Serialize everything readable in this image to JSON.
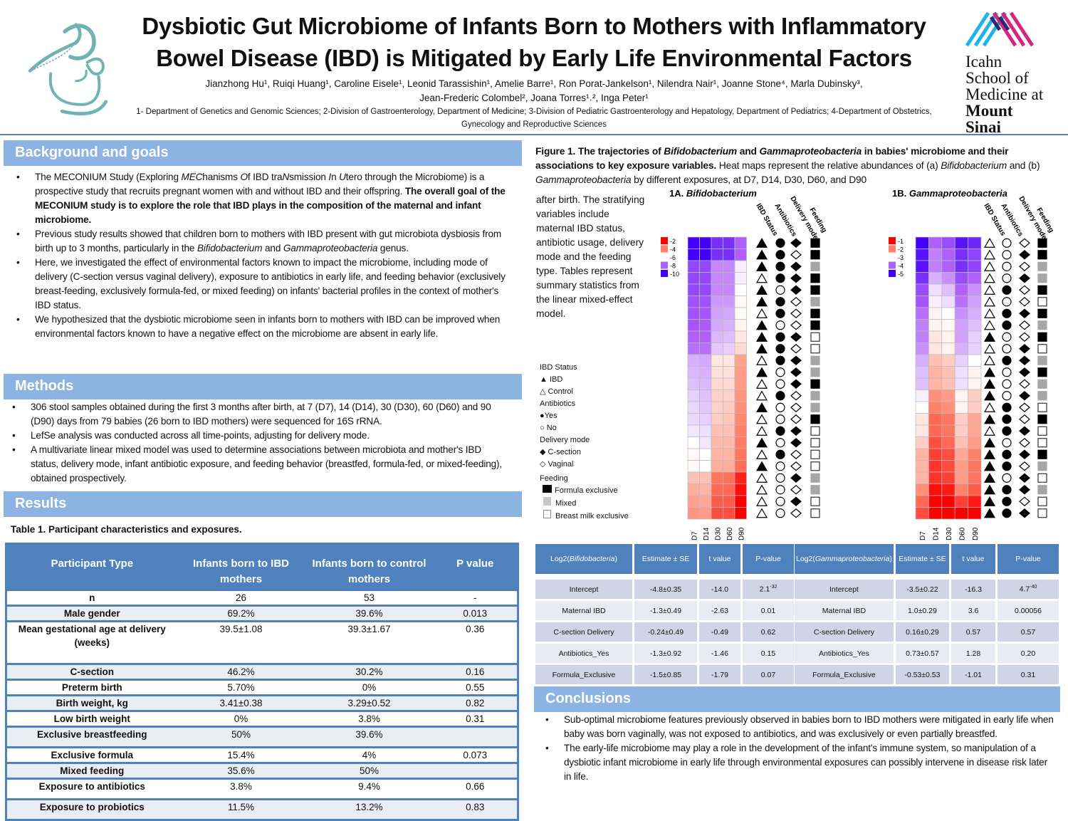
{
  "header": {
    "title": "Dysbiotic Gut Microbiome of Infants Born to Mothers with Inflammatory Bowel Disease (IBD) is Mitigated by Early Life Environmental Factors",
    "authors_line1": "Jianzhong Hu¹, Ruiqi Huang¹, Caroline Eisele¹, Leonid Tarassishin¹, Amelie Barre¹, Ron Porat-Jankelson¹, Nilendra Nair¹, Joanne Stone⁴, Marla Dubinsky³,",
    "authors_line2": "Jean-Frederic Colombel², Joana Torres¹˒², Inga Peter¹",
    "affiliations": "1- Department of Genetics and Genomic Sciences; 2-Division of Gastroenterology, Department of Medicine; 3-Division of Pediatric Gastroenterology and Hepatology, Department of Pediatrics; 4-Department of Obstetrics, Gynecology and Reproductive Sciences",
    "logo_text": [
      "Icahn",
      "School of",
      "Medicine at",
      "Mount",
      "Sinai"
    ],
    "accent": "#4f81bd",
    "section_color": "#8db3e2",
    "logo_teal": "#6fb3b3"
  },
  "background": {
    "heading": "Background and goals",
    "b1_a": "The MECONIUM Study (Exploring ",
    "b1_b": "MEC",
    "b1_c": "hanisms ",
    "b1_d": "O",
    "b1_e": "f IBD tra",
    "b1_f": "N",
    "b1_g": "smission ",
    "b1_h": "I",
    "b1_i": "n ",
    "b1_j": "U",
    "b1_k": "tero through the Microbiome) is a prospective study that recruits pregnant women with and without IBD and their offspring. ",
    "b1_bold": "The overall goal of the MECONIUM study is to explore the role that IBD plays in the composition of the maternal and infant microbiome.",
    "b2_a": "Previous study results showed that children born to mothers with IBD present with gut microbiota dysbiosis from birth up to 3 months, particularly in the ",
    "b2_i1": "Bifidobacterium",
    "b2_b": " and ",
    "b2_i2": "Gammaproteobacteria",
    "b2_c": " genus.",
    "b3": "Here, we investigated the effect of environmental factors known to impact the microbiome, including mode of delivery (C-section versus vaginal delivery), exposure to antibiotics in early life, and feeding behavior (exclusively breast-feeding, exclusively formula-fed, or mixed feeding) on infants' bacterial profiles in the context of mother's IBD status.",
    "b4": "We hypothesized that the dysbiotic microbiome seen in infants born to mothers with IBD can be improved when environmental factors known to have a negative effect on the microbiome are absent in early life."
  },
  "methods": {
    "heading": "Methods",
    "items": [
      "306 stool samples obtained during the first 3 months after birth, at 7 (D7), 14 (D14), 30 (D30), 60 (D60) and 90 (D90) days from 79 babies (26 born to IBD mothers) were sequenced for 16S rRNA.",
      "LefSe analysis was conducted across all time-points, adjusting for delivery mode.",
      "A multivariate linear mixed model was used to determine associations between microbiota and mother's IBD status, delivery mode, infant antibiotic exposure, and feeding behavior (breastfed, formula-fed, or mixed-feeding), obtained prospectively."
    ]
  },
  "results": {
    "heading": "Results",
    "table_title": "Table 1. Participant characteristics and exposures.",
    "table1": {
      "headers": [
        "Participant Type",
        "Infants born to IBD mothers",
        "Infants born to control mothers",
        "P value"
      ],
      "rows": [
        [
          "n",
          "26",
          "53",
          "-"
        ],
        [
          "Male gender",
          "69.2%",
          "39.6%",
          "0.013"
        ],
        [
          "Mean gestational age at delivery (weeks)",
          "39.5±1.08",
          "39.3±1.67",
          "0.36"
        ],
        [
          "C-section",
          "46.2%",
          "30.2%",
          "0.16"
        ],
        [
          "Preterm birth",
          "5.70%",
          "0%",
          "0.55"
        ],
        [
          "Birth weight, kg",
          "3.41±0.38",
          "3.29±0.52",
          "0.82"
        ],
        [
          "Low birth weight",
          "0%",
          "3.8%",
          "0.31"
        ],
        [
          "Exclusive breastfeeding",
          "50%",
          "39.6%",
          ""
        ],
        [
          "Exclusive formula",
          "15.4%",
          "4%",
          "0.073"
        ],
        [
          "Mixed feeding",
          "35.6%",
          "50%",
          ""
        ],
        [
          "Exposure to antibiotics",
          "3.8%",
          "9.4%",
          "0.66"
        ],
        [
          "Exposure to probiotics",
          "11.5%",
          "13.2%",
          "0.83"
        ]
      ]
    }
  },
  "figure": {
    "cap_bold1": "Figure 1. The trajectories of ",
    "cap_bi1": "Bifidobacterium",
    "cap_bold2": " and ",
    "cap_bi2": "Gammaproteobacteria",
    "cap_bold3": " in babies' microbiome and their associations to key exposure variables.",
    "cap_1": " Heat maps represent the relative abundances of (a) ",
    "cap_i1": "Bifidobacterium",
    "cap_2": " and (b) ",
    "cap_i2": "Gammaproteobacteria",
    "cap_3": " by different exposures, at D7, D14, D30, D60, and D90",
    "cap_wrap": "after birth. The stratifying variables include maternal IBD status, antibiotic usage, delivery mode and the feeding type. Tables represent summary statistics from the linear mixed-effect model.",
    "legend": {
      "ibd_title": "IBD Status",
      "ibd": "IBD",
      "control": "Control",
      "abx_title": "Antibiotics",
      "yes": "Yes",
      "no": "No",
      "del_title": "Delivery mode",
      "csec": "C-section",
      "vag": "Vaginal",
      "feed_title": "Feeding",
      "formula": "Formula exclusive",
      "mixed": "Mixed",
      "breast": "Breast milk exclusive"
    },
    "cov_labels": [
      "IBD Status",
      "Antibiotics",
      "Delivery mode",
      "Feeding"
    ],
    "timepoints": [
      "D7",
      "D14",
      "D30",
      "D60",
      "D90"
    ]
  },
  "chart_data": [
    {
      "type": "heatmap",
      "title_prefix": "1A. ",
      "title": "Bifidobacterium",
      "scale_ticks": [
        "-2",
        "-4",
        "-6",
        "-8",
        "-10"
      ],
      "range": [
        -10,
        -2
      ],
      "values": [
        [
          -10,
          -10,
          -9,
          -9,
          -8
        ],
        [
          -10,
          -10,
          -9,
          -9,
          -8
        ],
        [
          -8.5,
          -8.5,
          -7.5,
          -7.5,
          -6.2
        ],
        [
          -8.5,
          -8.5,
          -7.5,
          -7.5,
          -6.2
        ],
        [
          -8.5,
          -8.5,
          -7.5,
          -7.5,
          -6
        ],
        [
          -8.3,
          -8.3,
          -7.3,
          -7.3,
          -5.9
        ],
        [
          -8.3,
          -8.2,
          -7.2,
          -7.1,
          -5.9
        ],
        [
          -8.2,
          -8.1,
          -7.1,
          -7,
          -5.8
        ],
        [
          -8,
          -8,
          -6.9,
          -6.8,
          -5.6
        ],
        [
          -7.8,
          -7.8,
          -6.7,
          -6.6,
          -5.4
        ],
        [
          -7,
          -7.1,
          -5.6,
          -5.6,
          -4.5
        ],
        [
          -6.9,
          -7,
          -5.5,
          -5.5,
          -4.4
        ],
        [
          -6.8,
          -6.9,
          -5.4,
          -5.4,
          -4.4
        ],
        [
          -6.6,
          -6.8,
          -5.3,
          -5.3,
          -4.3
        ],
        [
          -6.5,
          -6.7,
          -5.3,
          -5.2,
          -4.2
        ],
        [
          -6.5,
          -6.6,
          -5.2,
          -5.1,
          -4.1
        ],
        [
          -6.3,
          -6.4,
          -5,
          -5,
          -4
        ],
        [
          -6,
          -6.3,
          -4.9,
          -4.9,
          -3.9
        ],
        [
          -5.9,
          -6,
          -4.8,
          -4.8,
          -3.8
        ],
        [
          -5.9,
          -6,
          -4.7,
          -4.7,
          -3.7
        ],
        [
          -5,
          -5,
          -3.8,
          -3.7,
          -2.5
        ],
        [
          -4.7,
          -4.8,
          -3.6,
          -3.6,
          -2.2
        ],
        [
          -4.5,
          -4.6,
          -3.4,
          -3.4,
          -2
        ],
        [
          -4.3,
          -4.4,
          -3.2,
          -3.2,
          -2
        ]
      ],
      "covariates": [
        [
          1,
          1,
          1,
          "F"
        ],
        [
          1,
          1,
          0,
          "F"
        ],
        [
          1,
          1,
          1,
          "M"
        ],
        [
          0,
          1,
          1,
          "F"
        ],
        [
          1,
          0,
          1,
          "F"
        ],
        [
          1,
          1,
          0,
          "M"
        ],
        [
          0,
          1,
          0,
          "F"
        ],
        [
          1,
          0,
          0,
          "F"
        ],
        [
          1,
          1,
          1,
          "B"
        ],
        [
          1,
          1,
          0,
          "B"
        ],
        [
          0,
          1,
          1,
          "M"
        ],
        [
          1,
          0,
          1,
          "M"
        ],
        [
          0,
          0,
          1,
          "F"
        ],
        [
          0,
          1,
          0,
          "M"
        ],
        [
          1,
          0,
          0,
          "M"
        ],
        [
          0,
          0,
          0,
          "F"
        ],
        [
          0,
          1,
          1,
          "B"
        ],
        [
          1,
          0,
          1,
          "B"
        ],
        [
          0,
          1,
          0,
          "B"
        ],
        [
          1,
          0,
          0,
          "B"
        ],
        [
          0,
          0,
          1,
          "M"
        ],
        [
          0,
          0,
          0,
          "M"
        ],
        [
          0,
          0,
          1,
          "B"
        ],
        [
          0,
          0,
          0,
          "B"
        ]
      ]
    },
    {
      "type": "heatmap",
      "title_prefix": "1B. ",
      "title": "Gammaproteobacteria",
      "scale_ticks": [
        "-1",
        "-2",
        "-3",
        "-4",
        "-5"
      ],
      "range": [
        -5,
        -1
      ],
      "values": [
        [
          -5,
          -4,
          -4.2,
          -4.8,
          -4.6
        ],
        [
          -4.8,
          -3.8,
          -4,
          -4.5,
          -4.3
        ],
        [
          -4.8,
          -3.8,
          -4,
          -4.5,
          -4.3
        ],
        [
          -4.5,
          -3.5,
          -3.7,
          -4.2,
          -4
        ],
        [
          -4.2,
          -3.2,
          -3.4,
          -4,
          -3.7
        ],
        [
          -4.1,
          -3.1,
          -3.2,
          -3.9,
          -3.6
        ],
        [
          -3.9,
          -2.9,
          -3,
          -3.7,
          -3.5
        ],
        [
          -3.8,
          -2.9,
          -2.95,
          -3.6,
          -3.4
        ],
        [
          -3.8,
          -2.8,
          -2.9,
          -3.6,
          -3.3
        ],
        [
          -3.7,
          -2.8,
          -2.9,
          -3.5,
          -3.3
        ],
        [
          -3.5,
          -2.5,
          -2.6,
          -3.3,
          -3
        ],
        [
          -3.4,
          -2.4,
          -2.5,
          -3.2,
          -2.9
        ],
        [
          -3.4,
          -2.4,
          -2.5,
          -3.2,
          -2.9
        ],
        [
          -3.1,
          -2.1,
          -2.2,
          -2.9,
          -2.6
        ],
        [
          -3,
          -2,
          -2.1,
          -2.9,
          -2.6
        ],
        [
          -2.8,
          -1.8,
          -1.9,
          -2.6,
          -2.3
        ],
        [
          -2.8,
          -1.8,
          -1.9,
          -2.6,
          -2.3
        ],
        [
          -2.6,
          -1.6,
          -1.8,
          -2.5,
          -2.2
        ],
        [
          -2.4,
          -1.5,
          -1.6,
          -2.3,
          -2
        ],
        [
          -2.4,
          -1.4,
          -1.6,
          -2.2,
          -1.9
        ],
        [
          -2.4,
          -1.4,
          -1.5,
          -2.2,
          -1.9
        ],
        [
          -2.1,
          -1.1,
          -1.2,
          -2,
          -1.7
        ],
        [
          -1.8,
          -1,
          -1,
          -1.5,
          -1.2
        ],
        [
          -1.6,
          -1,
          -1,
          -1,
          -1
        ]
      ],
      "covariates": [
        [
          0,
          0,
          0,
          "F"
        ],
        [
          0,
          0,
          1,
          "F"
        ],
        [
          0,
          0,
          0,
          "M"
        ],
        [
          0,
          0,
          1,
          "M"
        ],
        [
          0,
          1,
          0,
          "F"
        ],
        [
          0,
          0,
          0,
          "B"
        ],
        [
          0,
          1,
          1,
          "F"
        ],
        [
          0,
          1,
          0,
          "M"
        ],
        [
          1,
          0,
          0,
          "F"
        ],
        [
          0,
          0,
          1,
          "B"
        ],
        [
          0,
          1,
          1,
          "M"
        ],
        [
          1,
          0,
          1,
          "F"
        ],
        [
          1,
          0,
          0,
          "M"
        ],
        [
          1,
          0,
          1,
          "M"
        ],
        [
          0,
          1,
          0,
          "B"
        ],
        [
          1,
          1,
          0,
          "F"
        ],
        [
          0,
          1,
          1,
          "B"
        ],
        [
          1,
          0,
          0,
          "B"
        ],
        [
          1,
          1,
          1,
          "F"
        ],
        [
          1,
          1,
          0,
          "M"
        ],
        [
          1,
          0,
          1,
          "B"
        ],
        [
          1,
          1,
          1,
          "M"
        ],
        [
          1,
          1,
          0,
          "B"
        ],
        [
          1,
          1,
          1,
          "B"
        ]
      ]
    }
  ],
  "model_tables": {
    "bifido": {
      "h0a": "Log2(",
      "h0i": "Bifidobacteria",
      "h0b": ")",
      "h1": "Estimate ± SE",
      "h2": "t value",
      "h3": "P-value",
      "rows": [
        [
          "Intercept",
          "-4.8±0.35",
          "-14.0",
          "2.1",
          "-32"
        ],
        [
          "Maternal IBD",
          "-1.3±0.49",
          "-2.63",
          "0.01",
          ""
        ],
        [
          "C-section Delivery",
          "-0.24±0.49",
          "-0.49",
          "0.62",
          ""
        ],
        [
          "Antibiotics_Yes",
          "-1.3±0.92",
          "-1.46",
          "0.15",
          ""
        ],
        [
          "Formula_Exclusive",
          "-1.5±0.85",
          "-1.79",
          "0.07",
          ""
        ]
      ]
    },
    "gamma": {
      "h0a": "Log2(",
      "h0i": "Gammaproteobacteria",
      "h0b": ")",
      "h1": "Estimate ± SE",
      "h2": "t value",
      "h3": "P-value",
      "rows": [
        [
          "Intercept",
          "-3.5±0.22",
          "-16.3",
          "4.7",
          "-40"
        ],
        [
          "Maternal IBD",
          "1.0±0.29",
          "3.6",
          "0.00056",
          ""
        ],
        [
          "C-section Delivery",
          "0.16±0.29",
          "0.57",
          "0.57",
          ""
        ],
        [
          "Antibiotics_Yes",
          "0.73±0.57",
          "1.28",
          "0.20",
          ""
        ],
        [
          "Formula_Exclusive",
          "-0.53±0.53",
          "-1.01",
          "0.31",
          ""
        ]
      ]
    }
  },
  "conclusions": {
    "heading": "Conclusions",
    "items": [
      "Sub-optimal microbiome features previously observed in babies born to IBD mothers were mitigated in early life when baby was born vaginally, was not exposed to antibiotics, and was exclusively or even partially breastfed.",
      "The early-life microbiome may play a role in the development of the infant's immune system, so manipulation of a dysbiotic infant microbiome in early life through environmental exposures can possibly intervene in disease risk later in life."
    ]
  }
}
